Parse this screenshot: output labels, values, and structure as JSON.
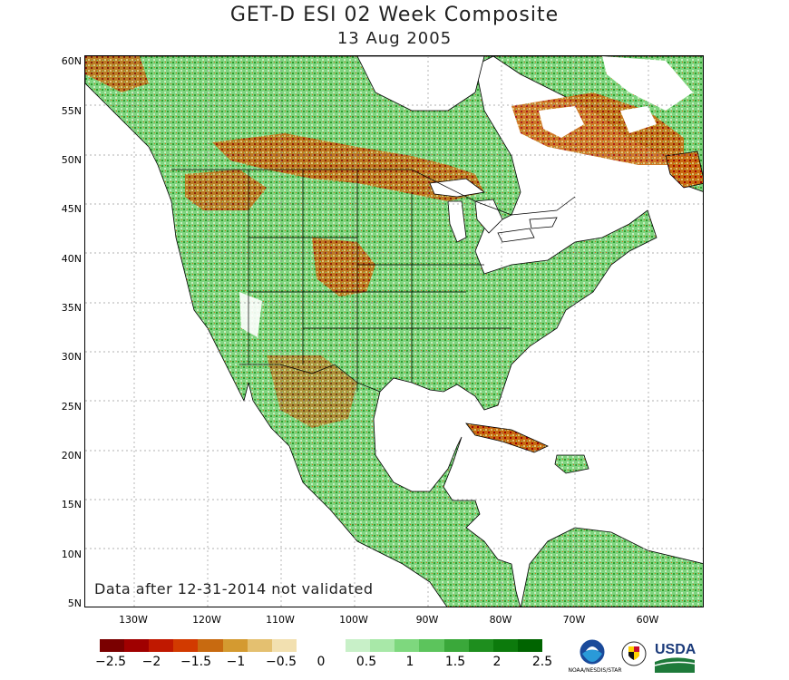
{
  "title": "GET-D ESI 02 Week Composite",
  "subtitle": "13 Aug 2005",
  "note": "Data after 12-31-2014 not validated",
  "map": {
    "lon_range": [
      -135,
      -55
    ],
    "lat_range": [
      5,
      60
    ],
    "lat_ticks": [
      "5N",
      "10N",
      "15N",
      "20N",
      "25N",
      "30N",
      "35N",
      "40N",
      "45N",
      "50N",
      "55N",
      "60N"
    ],
    "lon_ticks": [
      "130W",
      "120W",
      "110W",
      "100W",
      "90W",
      "80W",
      "70W",
      "60W"
    ]
  },
  "colorbar": {
    "labels": [
      "−2.5",
      "−2",
      "−1.5",
      "−1",
      "−0.5",
      "0",
      "0.5",
      "1",
      "1.5",
      "2",
      "2.5"
    ],
    "colors": [
      "#7a0000",
      "#a00000",
      "#c01800",
      "#d23a00",
      "#c86a10",
      "#d49a30",
      "#e4c070",
      "#f2e0b0",
      "#ffffff",
      "#ffffff",
      "#c8f0c8",
      "#a8e8a8",
      "#7ed87e",
      "#5cc45c",
      "#3aa83a",
      "#1e8e1e",
      "#0c7a0c",
      "#006400"
    ]
  },
  "logos": {
    "noaa_text": "NOAA/NESDIS/STAR",
    "usda_text": "USDA"
  }
}
